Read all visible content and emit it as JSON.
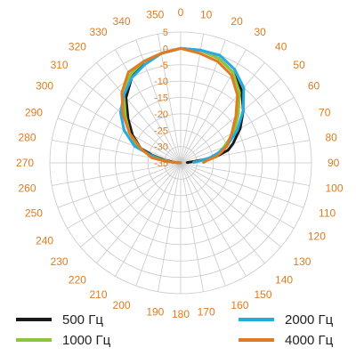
{
  "chart_data": {
    "type": "polar-line",
    "angle_ticks": [
      "0",
      "10",
      "20",
      "30",
      "40",
      "50",
      "60",
      "70",
      "80",
      "90",
      "100",
      "110",
      "120",
      "130",
      "140",
      "150",
      "160",
      "170",
      "180",
      "190",
      "200",
      "210",
      "220",
      "230",
      "240",
      "250",
      "260",
      "270",
      "280",
      "290",
      "300",
      "310",
      "320",
      "330",
      "340",
      "350"
    ],
    "radial_ticks": [
      "5",
      "0",
      "-5",
      "-10",
      "-15",
      "-20",
      "-25",
      "-30",
      "-35"
    ],
    "rlim": [
      -35,
      5
    ],
    "angle_step_deg": 10,
    "grid": true,
    "legend_position": "bottom",
    "series": [
      {
        "name": "500 Гц",
        "color": "#1a1a1a",
        "points": [
          [
            270,
            -35
          ],
          [
            275,
            -33
          ],
          [
            280,
            -30
          ],
          [
            285,
            -26
          ],
          [
            290,
            -22
          ],
          [
            300,
            -18
          ],
          [
            310,
            -14
          ],
          [
            320,
            -9
          ],
          [
            330,
            -5
          ],
          [
            340,
            -2
          ],
          [
            350,
            -1
          ],
          [
            0,
            0
          ],
          [
            10,
            0
          ],
          [
            20,
            -1
          ],
          [
            30,
            -3
          ],
          [
            40,
            -6
          ],
          [
            50,
            -10
          ],
          [
            60,
            -14
          ],
          [
            70,
            -18
          ],
          [
            75,
            -20
          ],
          [
            80,
            -24
          ],
          [
            82,
            -28
          ],
          [
            84,
            -31
          ],
          [
            87,
            -33
          ]
        ]
      },
      {
        "name": "1000 Гц",
        "color": "#8cc63f",
        "points": [
          [
            270,
            -35
          ],
          [
            275,
            -32
          ],
          [
            280,
            -29
          ],
          [
            285,
            -25
          ],
          [
            290,
            -21
          ],
          [
            300,
            -17
          ],
          [
            310,
            -13
          ],
          [
            320,
            -8
          ],
          [
            330,
            -4
          ],
          [
            340,
            -2
          ],
          [
            350,
            -1
          ],
          [
            0,
            0
          ],
          [
            10,
            0
          ],
          [
            20,
            -1
          ],
          [
            30,
            -3
          ],
          [
            40,
            -7
          ],
          [
            50,
            -12
          ],
          [
            60,
            -16
          ],
          [
            70,
            -21
          ],
          [
            75,
            -23
          ],
          [
            80,
            -25
          ],
          [
            84,
            -29
          ],
          [
            87,
            -31
          ]
        ]
      },
      {
        "name": "2000 Гц",
        "color": "#27aae1",
        "points": [
          [
            270,
            -35
          ],
          [
            275,
            -31
          ],
          [
            280,
            -28
          ],
          [
            285,
            -25
          ],
          [
            290,
            -20
          ],
          [
            300,
            -15
          ],
          [
            310,
            -11
          ],
          [
            320,
            -8
          ],
          [
            330,
            -5
          ],
          [
            340,
            -3
          ],
          [
            350,
            -1
          ],
          [
            0,
            0
          ],
          [
            10,
            0
          ],
          [
            20,
            0
          ],
          [
            30,
            -2
          ],
          [
            40,
            -5
          ],
          [
            50,
            -10
          ],
          [
            60,
            -15
          ],
          [
            70,
            -20
          ],
          [
            75,
            -23
          ],
          [
            80,
            -26
          ],
          [
            84,
            -29
          ],
          [
            88,
            -31
          ]
        ]
      },
      {
        "name": "4000 Гц",
        "color": "#e07b1f",
        "points": [
          [
            270,
            -35
          ],
          [
            275,
            -31
          ],
          [
            280,
            -26
          ],
          [
            290,
            -22
          ],
          [
            300,
            -17
          ],
          [
            310,
            -12
          ],
          [
            320,
            -7
          ],
          [
            330,
            -3
          ],
          [
            340,
            -2
          ],
          [
            350,
            -1
          ],
          [
            0,
            0
          ],
          [
            10,
            -1
          ],
          [
            20,
            -2
          ],
          [
            30,
            -4
          ],
          [
            40,
            -8
          ],
          [
            50,
            -13
          ],
          [
            60,
            -17
          ],
          [
            70,
            -20
          ],
          [
            75,
            -22
          ],
          [
            80,
            -24
          ],
          [
            85,
            -27
          ],
          [
            89,
            -28
          ]
        ]
      }
    ]
  }
}
